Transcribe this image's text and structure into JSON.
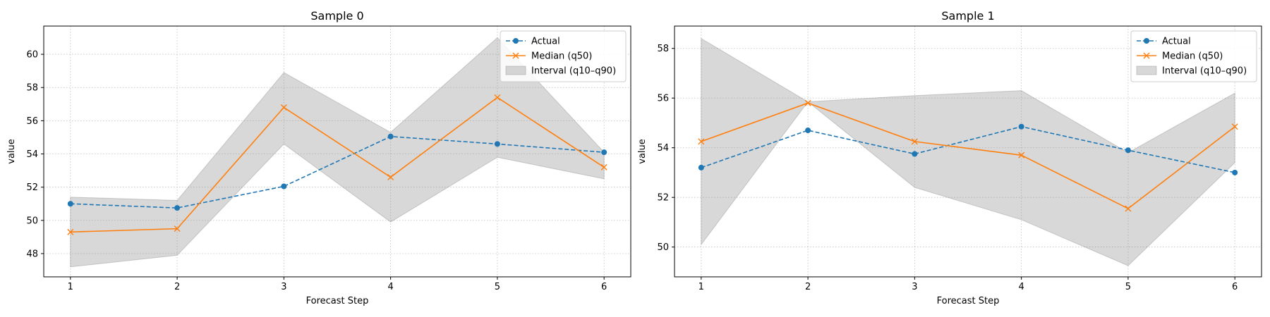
{
  "chart_data": [
    {
      "type": "line",
      "title": "Sample 0",
      "xlabel": "Forecast Step",
      "ylabel": "value",
      "x": [
        1,
        2,
        3,
        4,
        5,
        6
      ],
      "xlim": [
        0.75,
        6.25
      ],
      "ylim": [
        46.6,
        61.7
      ],
      "yticks": [
        48,
        50,
        52,
        54,
        56,
        58,
        60
      ],
      "grid": true,
      "legend_position": "upper right",
      "series": [
        {
          "name": "Actual",
          "style": "dashed-circle",
          "color": "#1f77b4",
          "values": [
            51.0,
            50.75,
            52.05,
            55.05,
            54.6,
            54.1
          ]
        },
        {
          "name": "Median (q50)",
          "style": "solid-x",
          "color": "#ff7f0e",
          "values": [
            49.3,
            49.5,
            56.8,
            52.6,
            57.4,
            53.2
          ]
        }
      ],
      "interval": {
        "name": "Interval (q10–q90)",
        "color": "#bdbdbd",
        "lower": [
          47.2,
          47.9,
          54.6,
          49.9,
          53.8,
          52.5
        ],
        "upper": [
          51.4,
          51.2,
          58.9,
          55.3,
          61.0,
          54.1
        ]
      }
    },
    {
      "type": "line",
      "title": "Sample 1",
      "xlabel": "Forecast Step",
      "ylabel": "value",
      "x": [
        1,
        2,
        3,
        4,
        5,
        6
      ],
      "xlim": [
        0.75,
        6.25
      ],
      "ylim": [
        48.8,
        58.9
      ],
      "yticks": [
        50,
        52,
        54,
        56,
        58
      ],
      "grid": true,
      "legend_position": "upper right",
      "series": [
        {
          "name": "Actual",
          "style": "dashed-circle",
          "color": "#1f77b4",
          "values": [
            53.2,
            54.7,
            53.75,
            54.85,
            53.9,
            53.0
          ]
        },
        {
          "name": "Median (q50)",
          "style": "solid-x",
          "color": "#ff7f0e",
          "values": [
            54.25,
            55.8,
            54.25,
            53.7,
            51.55,
            54.85
          ]
        }
      ],
      "interval": {
        "name": "Interval (q10–q90)",
        "color": "#bdbdbd",
        "lower": [
          50.1,
          55.85,
          52.4,
          51.1,
          49.25,
          53.4
        ],
        "upper": [
          58.4,
          55.85,
          56.1,
          56.3,
          53.8,
          56.2
        ]
      }
    }
  ]
}
